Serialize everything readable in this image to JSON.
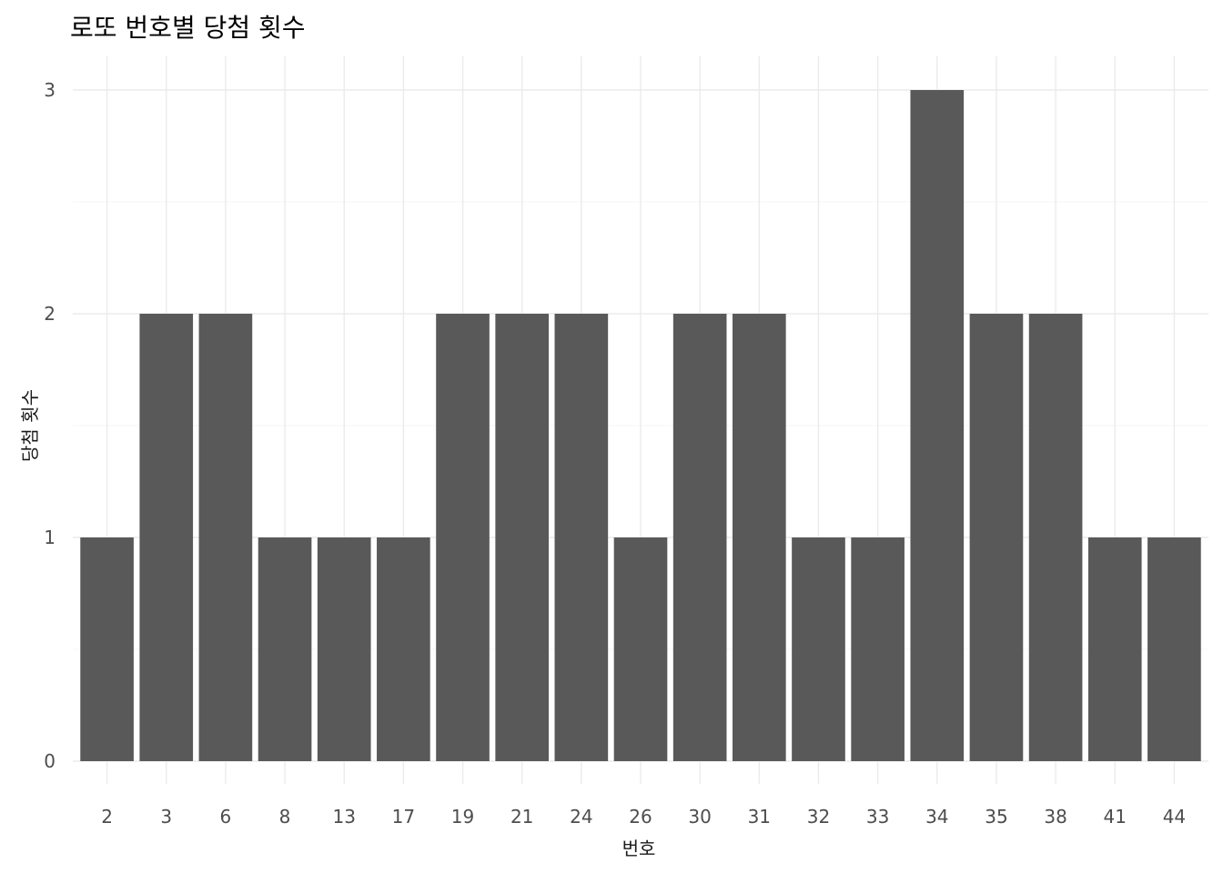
{
  "chart_data": {
    "type": "bar",
    "title": "로또 번호별 당첨 횟수",
    "xlabel": "번호",
    "ylabel": "당첨 횟수",
    "categories": [
      "2",
      "3",
      "6",
      "8",
      "13",
      "17",
      "19",
      "21",
      "24",
      "26",
      "30",
      "31",
      "32",
      "33",
      "34",
      "35",
      "38",
      "41",
      "44"
    ],
    "values": [
      1,
      2,
      2,
      1,
      1,
      1,
      2,
      2,
      2,
      1,
      2,
      2,
      1,
      1,
      3,
      2,
      2,
      1,
      1
    ],
    "ylim": [
      0,
      3
    ],
    "yticks": [
      "0",
      "1",
      "2",
      "3"
    ],
    "grid": true,
    "bar_color": "#595959"
  }
}
